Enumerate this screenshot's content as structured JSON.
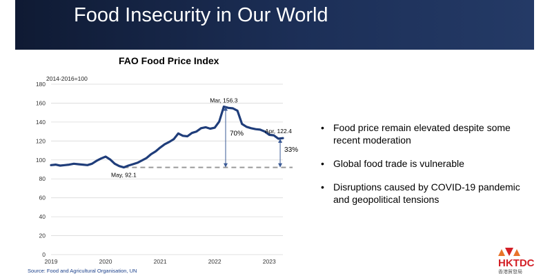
{
  "slide": {
    "title": "Food Insecurity in Our World",
    "bullets": [
      "Food price remain elevated despite some recent moderation",
      "Global food trade is vulnerable",
      "Disruptions caused by COVID-19 pandemic  and geopolitical tensions"
    ],
    "bullet_symbol": "•",
    "source": "Source: Food and Agricultural Organisation, UN",
    "logo_text": "HKTDC",
    "logo_subtext": "香港貿發局",
    "accent_color": "#d31f26"
  },
  "chart_data": {
    "type": "line",
    "title": "FAO Food Price Index",
    "note": "2014-2016=100",
    "ylim": [
      0,
      180
    ],
    "yticks": [
      0,
      20,
      40,
      60,
      80,
      100,
      120,
      140,
      160,
      180
    ],
    "xlim": [
      2019,
      2023.25
    ],
    "xticks": [
      {
        "value": 2019,
        "label": "2019"
      },
      {
        "value": 2020,
        "label": "2020"
      },
      {
        "value": 2021,
        "label": "2021"
      },
      {
        "value": 2022,
        "label": "2022"
      },
      {
        "value": 2023,
        "label": "2023"
      }
    ],
    "grid": true,
    "series": [
      {
        "color": "#1f3d7a",
        "x": [
          2019.0,
          2019.083,
          2019.167,
          2019.25,
          2019.333,
          2019.417,
          2019.5,
          2019.583,
          2019.667,
          2019.75,
          2019.833,
          2019.917,
          2020.0,
          2020.083,
          2020.167,
          2020.25,
          2020.333,
          2020.417,
          2020.5,
          2020.583,
          2020.667,
          2020.75,
          2020.833,
          2020.917,
          2021.0,
          2021.083,
          2021.167,
          2021.25,
          2021.333,
          2021.417,
          2021.5,
          2021.583,
          2021.667,
          2021.75,
          2021.833,
          2021.917,
          2022.0,
          2022.083,
          2022.167,
          2022.25,
          2022.333,
          2022.417,
          2022.5,
          2022.583,
          2022.667,
          2022.75,
          2022.833,
          2022.917,
          2023.0,
          2023.083,
          2023.167,
          2023.25
        ],
        "values": [
          94.5,
          95.0,
          94.0,
          94.5,
          95.0,
          96.0,
          95.5,
          95.0,
          94.5,
          96.0,
          99.0,
          101.5,
          103.5,
          100.5,
          96.0,
          93.5,
          92.1,
          94.0,
          95.5,
          97.0,
          99.5,
          102.0,
          106.0,
          109.0,
          113.0,
          116.5,
          119.0,
          122.0,
          128.0,
          125.5,
          125.0,
          128.5,
          130.0,
          133.5,
          134.5,
          133.0,
          134.0,
          140.5,
          156.3,
          155.0,
          154.5,
          152.0,
          138.0,
          135.0,
          133.5,
          132.5,
          132.0,
          130.0,
          126.5,
          126.0,
          122.4,
          123.0
        ]
      }
    ],
    "baseline": {
      "value": 92.1,
      "style": "dashed",
      "color": "#999999"
    },
    "annotations": [
      {
        "text": "Mar, 156.3",
        "x": 2022.167,
        "y": 156.3
      },
      {
        "text": "May, 92.1",
        "x": 2020.333,
        "y": 92.1
      },
      {
        "text": "Apr, 122.4",
        "x": 2023.167,
        "y": 122.4
      },
      {
        "text": "70%",
        "x": 2022.2,
        "from": 92.1,
        "to": 156.3
      },
      {
        "text": "33%",
        "x": 2023.2,
        "from": 92.1,
        "to": 122.4
      }
    ]
  }
}
